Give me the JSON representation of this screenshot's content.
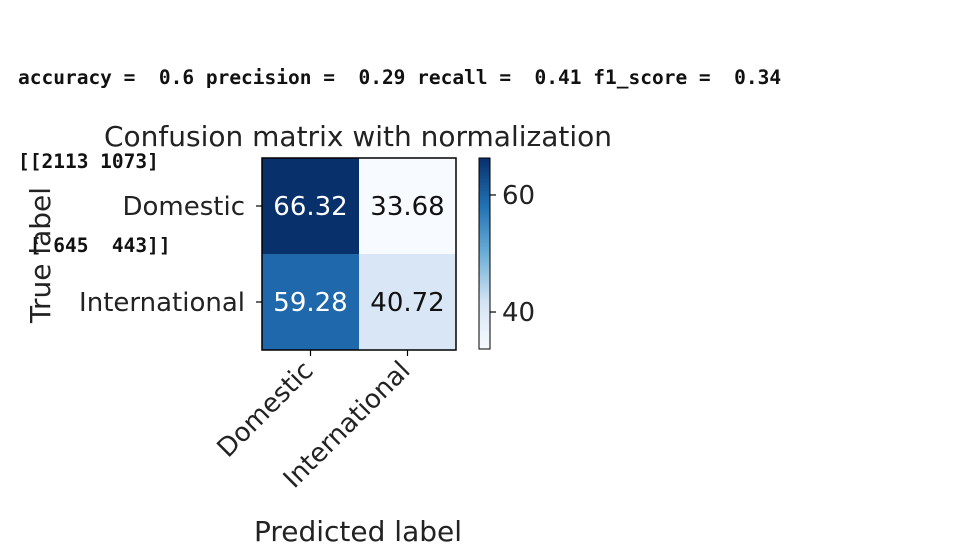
{
  "console": {
    "metrics_line": "accuracy =  0.6 precision =  0.29 recall =  0.41 f1_score =  0.34",
    "matrix_line_1": "[[2113 1073]",
    "matrix_line_2": " [ 645  443]]"
  },
  "chart_data": {
    "type": "heatmap",
    "title": "Confusion matrix with normalization",
    "xlabel": "Predicted label",
    "ylabel": "True label",
    "x_categories": [
      "Domestic",
      "International"
    ],
    "y_categories": [
      "Domestic",
      "International"
    ],
    "values": [
      [
        66.32,
        33.68
      ],
      [
        59.28,
        40.72
      ]
    ],
    "cell_labels": [
      [
        "66.32",
        "33.68"
      ],
      [
        "59.28",
        "40.72"
      ]
    ],
    "colormap": "Blues",
    "colorbar": {
      "vmin": 33.68,
      "vmax": 66.32,
      "ticks": [
        40,
        60
      ],
      "tick_labels": [
        "40",
        "60"
      ]
    },
    "colors": {
      "low": "#f7fbff",
      "high": "#08306b"
    }
  }
}
